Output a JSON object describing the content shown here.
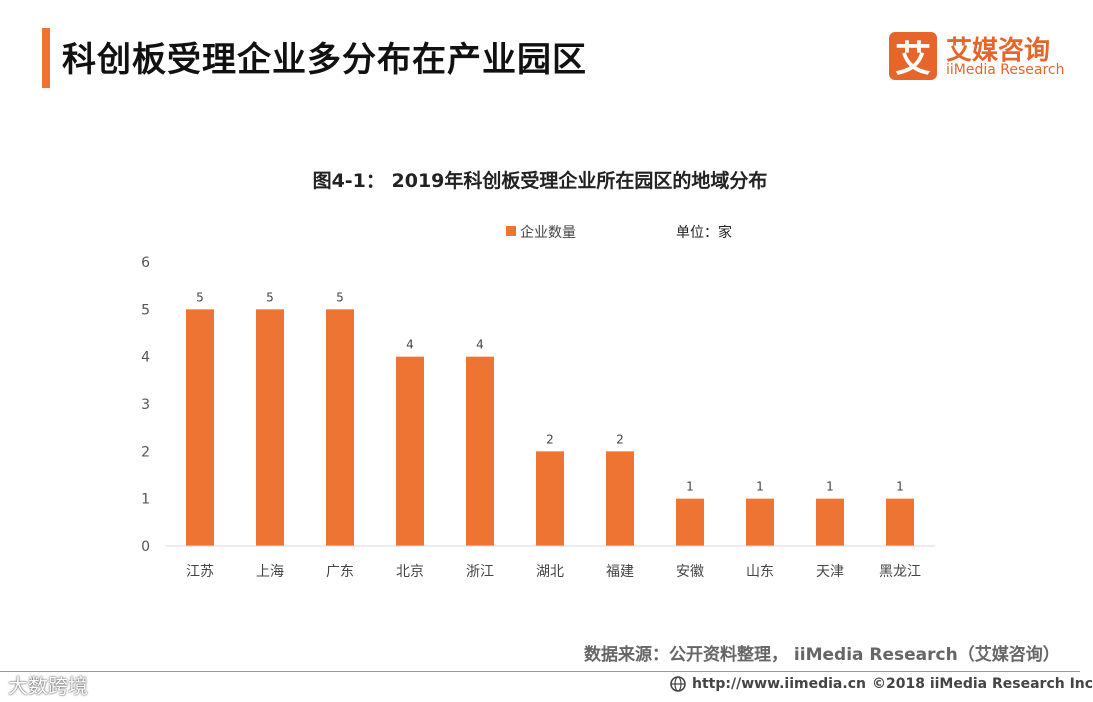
{
  "header": {
    "title": "科创板受理企业多分布在产业园区",
    "logo_mark": "艾",
    "logo_cn": "艾媒咨询",
    "logo_en": "iiMedia Research"
  },
  "legend": {
    "label": "企业数量",
    "unit": "单位：家"
  },
  "source": "数据来源：公开资料整理， iiMedia Research（艾媒咨询）",
  "footer": {
    "watermark": "大数跨境",
    "url": "http://www.iimedia.cn",
    "copyright": "©2018  iiMedia Research  Inc"
  },
  "colors": {
    "accent": "#ee7434",
    "axis": "#d9d9d9"
  },
  "chart_data": {
    "type": "bar",
    "title": "图4-1：  2019年科创板受理企业所在园区的地域分布",
    "categories": [
      "江苏",
      "上海",
      "广东",
      "北京",
      "浙江",
      "湖北",
      "福建",
      "安徽",
      "山东",
      "天津",
      "黑龙江"
    ],
    "series": [
      {
        "name": "企业数量",
        "values": [
          5,
          5,
          5,
          4,
          4,
          2,
          2,
          1,
          1,
          1,
          1
        ]
      }
    ],
    "ylim": [
      0,
      6
    ],
    "yticks": [
      0,
      1,
      2,
      3,
      4,
      5,
      6
    ],
    "grid": false,
    "legend_position": "top",
    "xlabel": "",
    "ylabel": ""
  }
}
